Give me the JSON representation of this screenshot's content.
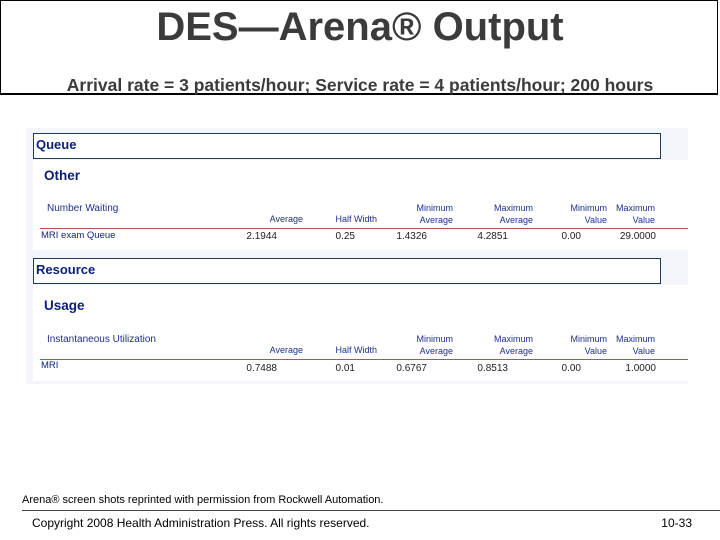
{
  "title": "DES—Arena® Output",
  "subtitle": "Arrival rate = 3 patients/hour; Service rate = 4 patients/hour; 200 hours",
  "columns": [
    "Average",
    "Half Width",
    "Minimum Average",
    "Maximum Average",
    "Minimum Value",
    "Maximum Value"
  ],
  "column_lines": {
    "average": "Average",
    "half_width": "Half Width",
    "min_avg_1": "Minimum",
    "min_avg_2": "Average",
    "max_avg_1": "Maximum",
    "max_avg_2": "Average",
    "min_val_1": "Minimum",
    "min_val_2": "Value",
    "max_val_1": "Maximum",
    "max_val_2": "Value"
  },
  "queue": {
    "header": "Queue",
    "category": "Other",
    "statistic": "Number Waiting",
    "row": {
      "label": "MRI exam Queue",
      "average": "2.1944",
      "half_width": "0.25",
      "min_average": "1.4326",
      "max_average": "4.2851",
      "min_value": "0.00",
      "max_value": "29.0000"
    }
  },
  "resource": {
    "header": "Resource",
    "category": "Usage",
    "statistic": "Instantaneous Utilization",
    "row": {
      "label": "MRI",
      "average": "0.7488",
      "half_width": "0.01",
      "min_average": "0.6767",
      "max_average": "0.8513",
      "min_value": "0.00",
      "max_value": "1.0000"
    }
  },
  "footnote": "Arena® screen shots reprinted with permission from Rockwell Automation.",
  "copyright": "Copyright 2008 Health Administration Press. All rights reserved.",
  "page_number": "10-33"
}
